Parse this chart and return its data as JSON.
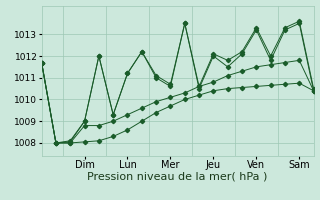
{
  "background_color": "#cce8dc",
  "grid_color": "#9ec8b4",
  "line_color": "#1a5c2a",
  "xlabel": "Pression niveau de la mer( hPa )",
  "xlabel_fontsize": 8,
  "ylim": [
    1007.4,
    1014.3
  ],
  "yticks": [
    1008,
    1009,
    1010,
    1011,
    1012,
    1013
  ],
  "ytick_fontsize": 6.5,
  "xtick_fontsize": 7,
  "day_labels": [
    "Dim",
    "Lun",
    "Mer",
    "Jeu",
    "Ven",
    "Sam"
  ],
  "day_x": [
    3,
    6,
    9,
    12,
    15,
    18
  ],
  "vline_x": [
    1.5,
    4.5,
    7.5,
    10.5,
    13.5,
    16.5
  ],
  "series1": [
    1011.7,
    1008.0,
    1008.0,
    1008.05,
    1008.1,
    1008.3,
    1008.6,
    1009.0,
    1009.4,
    1009.7,
    1010.0,
    1010.2,
    1010.4,
    1010.5,
    1010.55,
    1010.6,
    1010.65,
    1010.7,
    1010.75,
    1010.4
  ],
  "series2": [
    1011.7,
    1008.0,
    1008.0,
    1008.8,
    1008.8,
    1009.0,
    1009.3,
    1009.6,
    1009.9,
    1010.1,
    1010.3,
    1010.6,
    1010.8,
    1011.1,
    1011.3,
    1011.5,
    1011.6,
    1011.7,
    1011.8,
    1010.4
  ],
  "series3": [
    1011.7,
    1008.0,
    1008.05,
    1009.0,
    1012.0,
    1009.3,
    1011.2,
    1012.2,
    1011.0,
    1010.6,
    1013.5,
    1010.5,
    1012.0,
    1011.5,
    1012.1,
    1013.2,
    1011.8,
    1013.2,
    1013.5,
    1010.4
  ],
  "series4": [
    1011.7,
    1008.0,
    1008.1,
    1009.0,
    1012.0,
    1009.3,
    1011.2,
    1012.2,
    1011.1,
    1010.7,
    1013.5,
    1010.6,
    1012.1,
    1011.8,
    1012.2,
    1013.3,
    1012.0,
    1013.3,
    1013.6,
    1010.5
  ],
  "n_points": 20
}
